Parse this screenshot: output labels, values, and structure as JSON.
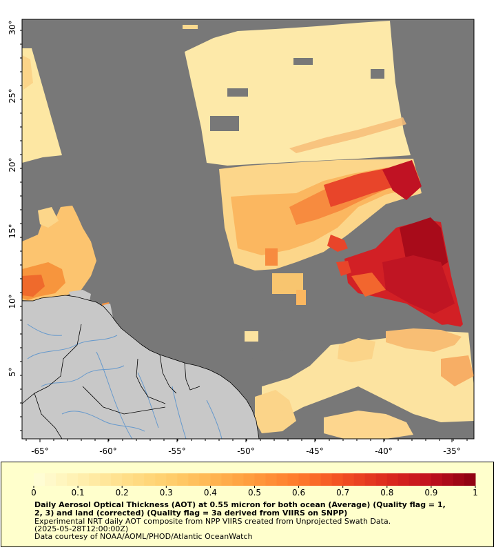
{
  "map": {
    "lon_ticks": [
      "-65°",
      "-60°",
      "-55°",
      "-50°",
      "-45°",
      "-40°",
      "-35°"
    ],
    "lat_ticks": [
      "5°",
      "10°",
      "15°",
      "20°",
      "25°",
      "30°"
    ],
    "colors": {
      "background_nodata": "#787878",
      "land": "#c8c8c8",
      "rivers": "#6699cc",
      "borders": "#000000"
    }
  },
  "legend": {
    "ticks": [
      "0",
      "0.1",
      "0.2",
      "0.3",
      "0.4",
      "0.5",
      "0.6",
      "0.7",
      "0.8",
      "0.9",
      "1"
    ],
    "palette": [
      "#ffffd9",
      "#fff0b0",
      "#ffe08c",
      "#ffd06e",
      "#ffb752",
      "#ff9a3c",
      "#ff7a2c",
      "#f24e22",
      "#dc2a1e",
      "#c0101e",
      "#8b0010"
    ],
    "caption_line1": "Daily Aerosol Optical Thickness (AOT) at 0.55 micron for both ocean (Average) (Quality flag = 1,",
    "caption_line2": "2, 3) and land (corrected) (Quality flag = 3a derived from VIIRS on SNPP)",
    "caption_line3": "Experimental NRT daily AOT composite from NPP VIIRS created from Unprojected Swath Data.",
    "caption_line4": "(2025-05-28T12:00:00Z)",
    "caption_line5": "Data courtesy of NOAA/AOML/PHOD/Atlantic OceanWatch"
  }
}
